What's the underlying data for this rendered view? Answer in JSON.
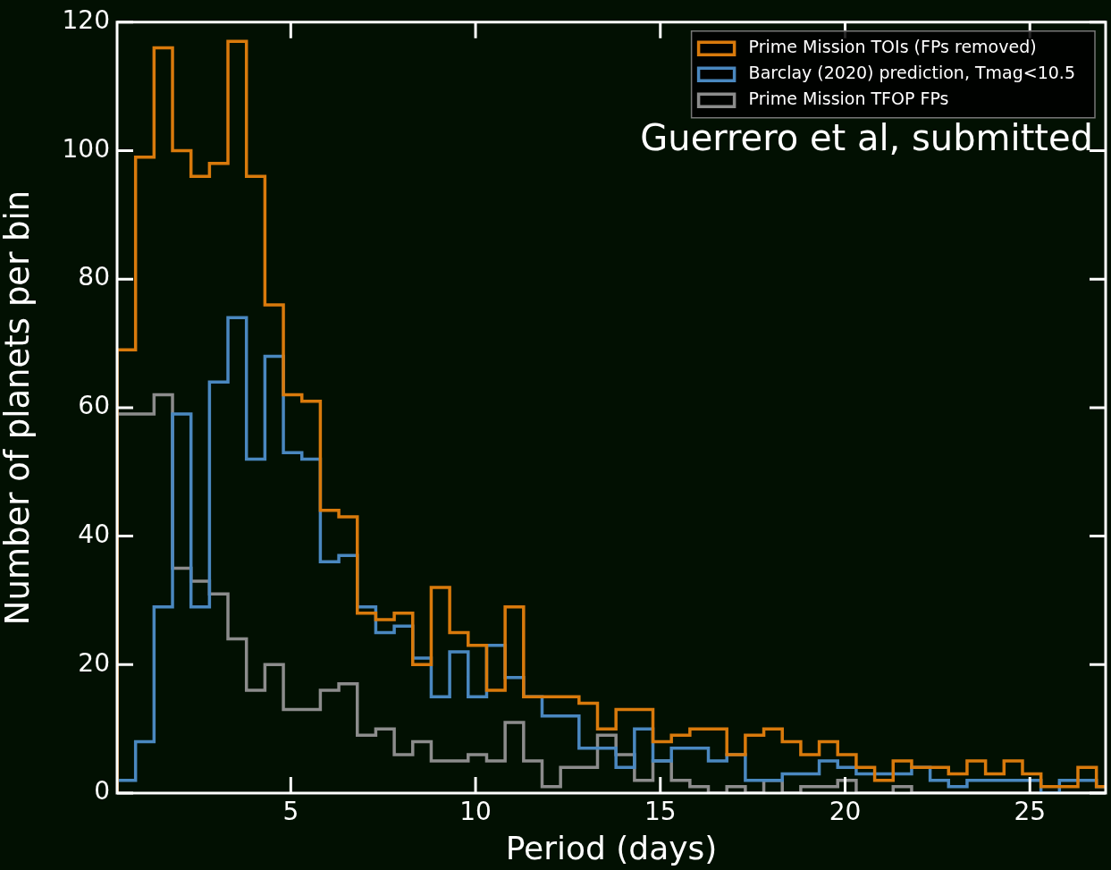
{
  "chart_data": {
    "type": "histogram",
    "xlabel": "Period (days)",
    "ylabel": "Number of planets per bin",
    "bins": [
      0.3,
      0.8,
      1.3,
      1.8,
      2.3,
      2.8,
      3.3,
      3.8,
      4.3,
      4.8,
      5.3,
      5.8,
      6.3,
      6.8,
      7.3,
      7.8,
      8.3,
      8.8,
      9.3,
      9.8,
      10.3,
      10.8,
      11.3,
      11.8,
      12.3,
      12.8,
      13.3,
      13.8,
      14.3,
      14.8,
      15.3,
      15.8,
      16.3,
      16.8,
      17.3,
      17.8,
      18.3,
      18.8,
      19.3,
      19.8,
      20.3,
      20.8,
      21.3,
      21.8,
      22.3,
      22.8,
      23.3,
      23.8,
      24.3,
      24.8,
      25.3,
      25.8,
      26.3,
      26.8,
      27.3
    ],
    "series": [
      {
        "name": "Prime Mission TOIs (FPs removed)",
        "color": "#d97a0c",
        "values": [
          69,
          99,
          116,
          100,
          96,
          98,
          117,
          96,
          76,
          62,
          61,
          44,
          43,
          28,
          27,
          28,
          20,
          32,
          25,
          23,
          16,
          29,
          15,
          15,
          15,
          14,
          10,
          13,
          13,
          8,
          9,
          10,
          10,
          6,
          9,
          10,
          8,
          6,
          8,
          6,
          4,
          2,
          5,
          4,
          4,
          3,
          5,
          3,
          5,
          3,
          1,
          1,
          4,
          1
        ]
      },
      {
        "name": "Barclay (2020) prediction, Tmag<10.5",
        "color": "#4a88c0",
        "values": [
          2,
          8,
          29,
          59,
          29,
          64,
          74,
          52,
          68,
          53,
          52,
          36,
          37,
          29,
          25,
          26,
          21,
          15,
          22,
          15,
          23,
          18,
          15,
          12,
          12,
          7,
          7,
          4,
          10,
          5,
          7,
          7,
          5,
          6,
          2,
          2,
          3,
          3,
          5,
          4,
          3,
          3,
          3,
          4,
          2,
          1,
          2,
          2,
          2,
          2,
          0,
          2,
          2,
          1
        ]
      },
      {
        "name": "Prime Mission TFOP FPs",
        "color": "#8c8c8c",
        "values": [
          59,
          59,
          62,
          35,
          33,
          31,
          24,
          16,
          20,
          13,
          13,
          16,
          17,
          9,
          10,
          6,
          8,
          5,
          5,
          6,
          5,
          11,
          5,
          1,
          4,
          4,
          9,
          6,
          2,
          5,
          2,
          1,
          0,
          1,
          0,
          2,
          0,
          1,
          1,
          2,
          0,
          0,
          1,
          0,
          0,
          0,
          0,
          0,
          0,
          0,
          0,
          0,
          0,
          0
        ]
      }
    ],
    "xlim": [
      0.3,
      27.05
    ],
    "ylim": [
      0,
      120
    ],
    "xticks": [
      5,
      10,
      15,
      20,
      25
    ],
    "yticks": [
      0,
      20,
      40,
      60,
      80,
      100,
      120
    ],
    "legend": "top right",
    "annotations": [
      "Guerrero et al, submitted"
    ]
  }
}
